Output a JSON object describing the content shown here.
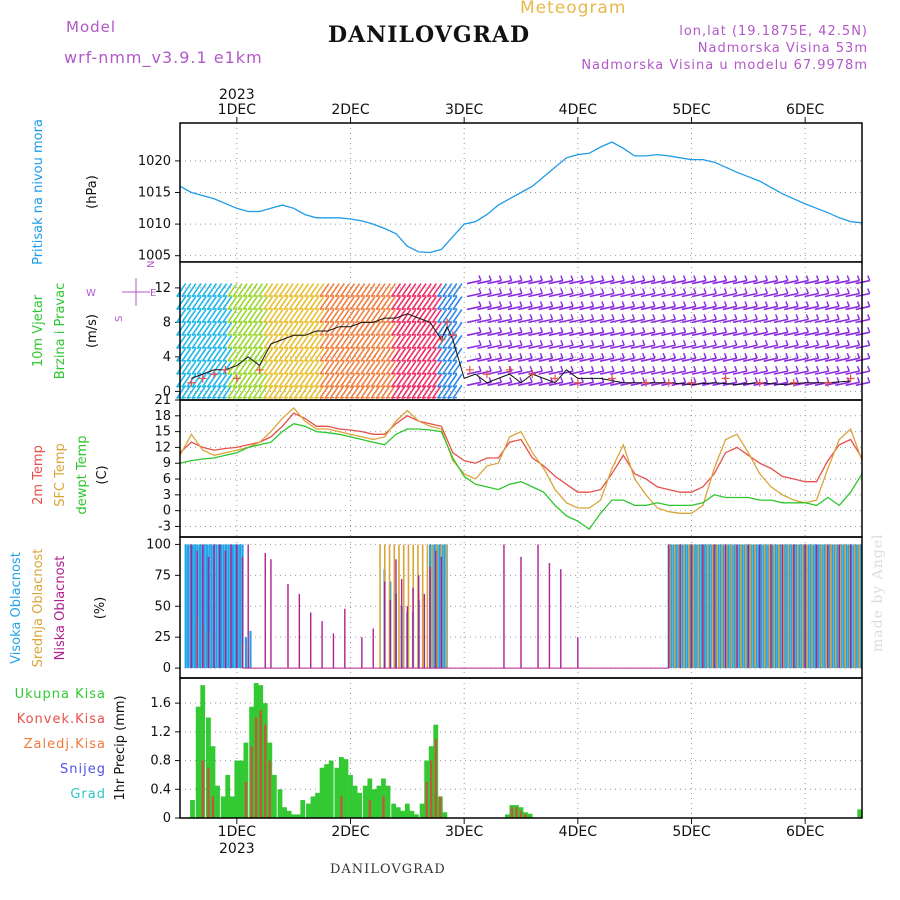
{
  "header": {
    "model_label": "Model",
    "model_name": "wrf-nmm_v3.9.1 e1km",
    "station": "DANILOVGRAD",
    "product": "Meteogram",
    "lonlat": "lon,lat (19.1875E, 42.5N)",
    "elevation": "Nadmorska Visina 53m",
    "model_elevation": "Nadmorska Visina u modelu 67.9978m",
    "footer_station": "DANILOVGRAD",
    "credit": "made by Angel"
  },
  "colors": {
    "pressure": "#1E9BE8",
    "t2m": "#E8504B",
    "sfc": "#D9A53A",
    "dew": "#2EC62E",
    "high_cloud": "#22A3E8",
    "mid_cloud": "#D9A53A",
    "low_cloud": "#B0208E",
    "precip_total": "#33C933",
    "precip_conv": "#C05A3A",
    "wind_speed": "#111111",
    "gust": "#E8504B",
    "grid": "#999999",
    "purple_text": "#B258C8"
  },
  "chart_data": [
    {
      "type": "line",
      "name": "pressure",
      "ylabel_lines": [
        "Pritisak na nivou mora",
        "(hPa)"
      ],
      "ylim": [
        1004,
        1026
      ],
      "yticks": [
        1005,
        1010,
        1015,
        1020
      ],
      "x_range": [
        0.5,
        6.5
      ],
      "x": [
        0.5,
        0.6,
        0.8,
        1.0,
        1.1,
        1.2,
        1.3,
        1.4,
        1.5,
        1.6,
        1.7,
        1.8,
        1.9,
        2.0,
        2.1,
        2.2,
        2.3,
        2.4,
        2.5,
        2.6,
        2.7,
        2.8,
        2.9,
        3.0,
        3.1,
        3.2,
        3.3,
        3.4,
        3.5,
        3.6,
        3.7,
        3.8,
        3.9,
        4.0,
        4.1,
        4.2,
        4.3,
        4.4,
        4.5,
        4.6,
        4.7,
        4.8,
        4.9,
        5.0,
        5.1,
        5.2,
        5.3,
        5.4,
        5.5,
        5.6,
        5.7,
        5.8,
        5.9,
        6.0,
        6.1,
        6.2,
        6.3,
        6.4,
        6.5
      ],
      "y": [
        1016,
        1015,
        1014,
        1012.5,
        1012,
        1012,
        1012.5,
        1013,
        1012.5,
        1011.5,
        1011,
        1011,
        1011,
        1010.8,
        1010.5,
        1010,
        1009.3,
        1008.5,
        1006.5,
        1005.6,
        1005.5,
        1006,
        1008,
        1010,
        1010.4,
        1011.5,
        1013,
        1014,
        1015,
        1016,
        1017.5,
        1019,
        1020.5,
        1021,
        1021.2,
        1022.2,
        1023,
        1022,
        1020.8,
        1020.8,
        1021,
        1020.8,
        1020.5,
        1020.2,
        1020.2,
        1019.8,
        1019,
        1018.2,
        1017.5,
        1016.8,
        1015.8,
        1014.8,
        1014,
        1013.2,
        1012.5,
        1011.8,
        1011,
        1010.4,
        1010.2
      ]
    },
    {
      "type": "wind",
      "name": "wind",
      "ylabel_lines": [
        "10m Vjetar",
        "Brzina i Pravac",
        "(m/s)"
      ],
      "compass": [
        "N",
        "W",
        "E",
        "S"
      ],
      "ylim": [
        -1,
        15
      ],
      "yticks": [
        0,
        4,
        8,
        12
      ],
      "x_range": [
        0.5,
        6.5
      ],
      "speed_x": [
        0.6,
        0.7,
        0.8,
        0.9,
        1.0,
        1.1,
        1.2,
        1.3,
        1.4,
        1.5,
        1.6,
        1.7,
        1.8,
        1.9,
        2.0,
        2.1,
        2.2,
        2.3,
        2.4,
        2.5,
        2.6,
        2.7,
        2.8,
        2.85,
        2.9,
        3.0,
        3.1,
        3.2,
        3.3,
        3.4,
        3.5,
        3.6,
        3.7,
        3.8,
        3.9,
        4.0,
        4.2,
        4.4,
        4.6,
        4.8,
        5.0,
        5.2,
        5.4,
        5.6,
        5.8,
        6.0,
        6.2,
        6.4
      ],
      "speed_y": [
        1.5,
        2.0,
        2.5,
        2.5,
        3.0,
        4.0,
        3.0,
        5.5,
        6.0,
        6.5,
        6.5,
        7.0,
        7.0,
        7.5,
        7.5,
        8.0,
        8.0,
        8.5,
        8.5,
        9.0,
        8.5,
        8.0,
        6.0,
        7.5,
        6.0,
        1.5,
        2.0,
        1.0,
        1.5,
        2.0,
        1.0,
        2.0,
        1.5,
        1.0,
        2.5,
        1.5,
        1.5,
        1.0,
        1.0,
        1.0,
        0.8,
        1.0,
        0.8,
        1.0,
        0.8,
        1.0,
        1.0,
        1.2
      ],
      "gust_x": [
        0.6,
        0.7,
        0.8,
        0.9,
        1.0,
        1.2,
        2.8,
        2.85,
        2.9,
        3.05,
        3.2,
        3.4,
        3.6,
        3.8,
        4.0,
        4.3,
        4.6,
        4.8,
        5.0,
        5.3,
        5.6,
        5.9,
        6.2,
        6.4
      ],
      "gust_y": [
        1.0,
        1.5,
        2.0,
        2.5,
        1.5,
        2.5,
        6.0,
        8.0,
        6.5,
        2.5,
        2.0,
        2.5,
        2.0,
        1.5,
        1.0,
        1.5,
        1.0,
        1.0,
        1.0,
        1.5,
        1.0,
        1.0,
        1.0,
        1.5
      ]
    },
    {
      "type": "line",
      "name": "temperature",
      "ylabel_lines": [
        "2m Temp",
        "SFC Temp",
        "dewpt Temp",
        "(C)"
      ],
      "ylim": [
        -5,
        21
      ],
      "yticks": [
        -3,
        0,
        3,
        6,
        9,
        12,
        15,
        18,
        21
      ],
      "x_range": [
        0.5,
        6.5
      ],
      "series": [
        {
          "name": "2m Temp",
          "x": [
            0.5,
            0.6,
            0.7,
            0.8,
            0.9,
            1.0,
            1.1,
            1.2,
            1.3,
            1.4,
            1.5,
            1.6,
            1.7,
            1.8,
            1.9,
            2.0,
            2.1,
            2.2,
            2.3,
            2.4,
            2.5,
            2.6,
            2.7,
            2.8,
            2.9,
            3.0,
            3.1,
            3.2,
            3.3,
            3.4,
            3.5,
            3.6,
            3.7,
            3.8,
            3.9,
            4.0,
            4.1,
            4.2,
            4.3,
            4.4,
            4.5,
            4.6,
            4.7,
            4.8,
            4.9,
            5.0,
            5.1,
            5.2,
            5.3,
            5.4,
            5.5,
            5.6,
            5.7,
            5.8,
            5.9,
            6.0,
            6.1,
            6.2,
            6.3,
            6.4,
            6.5
          ],
          "y": [
            11.0,
            13.0,
            12.0,
            11.5,
            11.8,
            12.0,
            12.5,
            13.0,
            14.0,
            16.0,
            18.5,
            17.5,
            16.0,
            16.0,
            15.5,
            15.3,
            15.0,
            14.5,
            14.5,
            16.5,
            18.0,
            17.0,
            16.5,
            16.0,
            11.0,
            9.5,
            9.0,
            10.0,
            10.0,
            13.0,
            13.5,
            10.0,
            8.5,
            6.5,
            5.0,
            3.5,
            3.5,
            4.0,
            7.0,
            10.5,
            7.0,
            6.0,
            4.5,
            4.0,
            3.5,
            3.5,
            4.5,
            7.0,
            11.0,
            12.0,
            10.5,
            9.0,
            8.0,
            6.5,
            6.0,
            5.5,
            5.5,
            9.5,
            12.5,
            13.5,
            10.0
          ]
        },
        {
          "name": "SFC Temp",
          "x": [
            0.5,
            0.6,
            0.7,
            0.8,
            0.9,
            1.0,
            1.1,
            1.2,
            1.3,
            1.4,
            1.5,
            1.6,
            1.7,
            1.8,
            1.9,
            2.0,
            2.1,
            2.2,
            2.3,
            2.4,
            2.5,
            2.6,
            2.7,
            2.8,
            2.9,
            3.0,
            3.1,
            3.2,
            3.3,
            3.4,
            3.5,
            3.6,
            3.7,
            3.8,
            3.9,
            4.0,
            4.1,
            4.2,
            4.3,
            4.4,
            4.5,
            4.6,
            4.7,
            4.8,
            4.9,
            5.0,
            5.1,
            5.2,
            5.3,
            5.4,
            5.5,
            5.6,
            5.7,
            5.8,
            5.9,
            6.0,
            6.1,
            6.2,
            6.3,
            6.4,
            6.5
          ],
          "y": [
            10.5,
            14.5,
            11.5,
            10.5,
            11.0,
            11.5,
            12.0,
            13.0,
            15.0,
            17.5,
            19.5,
            17.0,
            15.5,
            15.5,
            15.0,
            14.5,
            14.0,
            13.5,
            14.0,
            17.0,
            19.0,
            17.0,
            16.0,
            15.5,
            9.5,
            7.0,
            6.0,
            8.5,
            9.0,
            14.0,
            15.0,
            11.0,
            8.0,
            4.0,
            1.5,
            0.5,
            0.5,
            2.0,
            8.0,
            12.5,
            6.0,
            3.0,
            0.5,
            -0.2,
            -0.5,
            -0.5,
            1.0,
            8.0,
            13.5,
            14.5,
            11.0,
            7.0,
            4.5,
            3.0,
            2.0,
            1.5,
            2.0,
            8.0,
            13.5,
            15.5,
            9.5
          ]
        },
        {
          "name": "dewpt Temp",
          "x": [
            0.5,
            0.6,
            0.7,
            0.8,
            0.9,
            1.0,
            1.1,
            1.2,
            1.3,
            1.4,
            1.5,
            1.6,
            1.7,
            1.8,
            1.9,
            2.0,
            2.1,
            2.2,
            2.3,
            2.4,
            2.5,
            2.6,
            2.7,
            2.8,
            2.9,
            3.0,
            3.1,
            3.2,
            3.3,
            3.4,
            3.5,
            3.6,
            3.7,
            3.8,
            3.9,
            4.0,
            4.1,
            4.2,
            4.3,
            4.4,
            4.5,
            4.6,
            4.7,
            4.8,
            4.9,
            5.0,
            5.1,
            5.2,
            5.3,
            5.4,
            5.5,
            5.6,
            5.7,
            5.8,
            5.9,
            6.0,
            6.1,
            6.2,
            6.3,
            6.4,
            6.5
          ],
          "y": [
            9.0,
            9.5,
            9.8,
            10.0,
            10.5,
            11.0,
            12.0,
            12.5,
            13.0,
            15.0,
            16.5,
            16.0,
            15.0,
            14.8,
            14.5,
            14.0,
            13.5,
            13.0,
            12.5,
            14.5,
            15.5,
            15.5,
            15.3,
            15.0,
            10.0,
            6.5,
            5.0,
            4.5,
            4.0,
            5.0,
            5.5,
            4.5,
            3.5,
            1.0,
            -1.0,
            -2.0,
            -3.5,
            -0.5,
            2.0,
            2.0,
            1.0,
            1.0,
            1.5,
            1.0,
            1.0,
            1.0,
            1.5,
            3.0,
            2.5,
            2.5,
            2.5,
            2.0,
            2.0,
            1.5,
            1.5,
            1.5,
            1.0,
            2.5,
            1.0,
            3.5,
            7.0
          ]
        }
      ]
    },
    {
      "type": "bar",
      "name": "cloud",
      "ylabel_lines": [
        "Visoka Oblacnost",
        "Srednja Oblacnost",
        "Niska Oblacnost",
        "(%)"
      ],
      "ylim": [
        -8,
        106
      ],
      "yticks": [
        0,
        25,
        50,
        75,
        100
      ],
      "x_range": [
        0.5,
        6.5
      ],
      "high_runs": [
        [
          0.55,
          1.05,
          100
        ],
        [
          2.7,
          2.85,
          100
        ],
        [
          4.8,
          6.5,
          100
        ]
      ],
      "high_x": [
        1.08,
        1.12,
        2.3,
        2.35,
        2.4,
        2.45,
        2.5,
        2.55,
        2.6
      ],
      "high_y": [
        25,
        30,
        80,
        70,
        60,
        50,
        45,
        45,
        55
      ],
      "mid_runs": [
        [
          2.25,
          2.85,
          100
        ],
        [
          4.8,
          6.5,
          100
        ]
      ],
      "mid_x": [
        0.65,
        0.7,
        0.75,
        1.05,
        1.1
      ],
      "mid_y": [
        40,
        35,
        30,
        20,
        15
      ],
      "low_x": [
        0.6,
        0.65,
        0.7,
        0.75,
        0.8,
        0.85,
        0.9,
        0.95,
        1.0,
        1.05,
        1.1,
        1.25,
        1.3,
        1.45,
        1.55,
        1.65,
        1.75,
        1.85,
        1.95,
        2.1,
        2.2,
        2.3,
        2.35,
        2.4,
        2.45,
        2.5,
        2.55,
        2.6,
        2.65,
        2.7,
        2.75,
        2.8,
        3.35,
        3.5,
        3.65,
        3.75,
        3.85,
        4.0,
        4.8,
        4.9,
        5.0,
        5.1,
        5.2,
        5.3,
        5.4,
        5.5,
        5.6,
        5.7,
        5.8,
        5.9,
        6.0,
        6.1,
        6.2,
        6.3,
        6.4
      ],
      "low_y": [
        100,
        95,
        100,
        90,
        100,
        100,
        95,
        100,
        100,
        90,
        100,
        93,
        88,
        68,
        60,
        45,
        38,
        28,
        48,
        25,
        32,
        70,
        55,
        88,
        72,
        50,
        65,
        75,
        60,
        82,
        95,
        90,
        100,
        90,
        100,
        85,
        80,
        25,
        100,
        100,
        100,
        100,
        100,
        100,
        100,
        100,
        100,
        100,
        100,
        100,
        100,
        100,
        100,
        100,
        100
      ]
    },
    {
      "type": "bar",
      "name": "precip",
      "ylabel_lines": [
        "1hr Precip (mm)"
      ],
      "legend": [
        "Ukupna Kisa",
        "Konvek.Kisa",
        "Zaledj.Kisa",
        "Snijeg",
        "Grad"
      ],
      "ylim": [
        0,
        1.95
      ],
      "yticks": [
        0,
        0.4,
        0.8,
        1.2,
        1.6
      ],
      "x_range": [
        0.5,
        6.5
      ],
      "total_x": [
        0.61,
        0.66,
        0.7,
        0.75,
        0.79,
        0.83,
        0.88,
        0.92,
        0.96,
        1.0,
        1.04,
        1.08,
        1.13,
        1.17,
        1.21,
        1.25,
        1.29,
        1.33,
        1.38,
        1.42,
        1.46,
        1.5,
        1.54,
        1.58,
        1.63,
        1.67,
        1.71,
        1.75,
        1.79,
        1.83,
        1.88,
        1.92,
        1.96,
        2.0,
        2.04,
        2.08,
        2.13,
        2.17,
        2.21,
        2.25,
        2.29,
        2.33,
        2.38,
        2.42,
        2.46,
        2.5,
        2.54,
        2.58,
        2.63,
        2.67,
        2.71,
        2.75,
        2.79,
        2.83,
        3.38,
        3.42,
        3.46,
        3.5,
        3.54,
        3.58,
        6.48
      ],
      "total_y": [
        0.25,
        1.55,
        1.85,
        1.4,
        1.0,
        0.45,
        0.3,
        0.6,
        0.3,
        0.8,
        0.8,
        1.05,
        1.55,
        1.88,
        1.85,
        1.6,
        1.05,
        0.6,
        0.4,
        0.15,
        0.1,
        0.05,
        0.05,
        0.25,
        0.2,
        0.3,
        0.35,
        0.7,
        0.75,
        0.8,
        0.7,
        0.85,
        0.82,
        0.6,
        0.45,
        0.35,
        0.45,
        0.55,
        0.4,
        0.45,
        0.55,
        0.45,
        0.2,
        0.15,
        0.1,
        0.2,
        0.1,
        0.05,
        0.2,
        0.8,
        1.0,
        1.3,
        0.3,
        0.08,
        0.05,
        0.18,
        0.18,
        0.15,
        0.08,
        0.06,
        0.12
      ],
      "conv_x": [
        0.7,
        0.75,
        0.79,
        1.08,
        1.13,
        1.17,
        1.21,
        1.25,
        1.29,
        1.92,
        2.17,
        2.29,
        2.67,
        2.71,
        2.75,
        2.79,
        3.42,
        3.46,
        3.5,
        3.54
      ],
      "conv_y": [
        0.8,
        0.7,
        0.3,
        0.5,
        1.0,
        1.4,
        1.5,
        1.3,
        0.8,
        0.3,
        0.25,
        0.3,
        0.5,
        0.8,
        1.1,
        0.3,
        0.15,
        0.15,
        0.1,
        0.05
      ]
    }
  ],
  "x_axis": {
    "year": "2023",
    "top_labels": [
      "1DEC",
      "2DEC",
      "3DEC",
      "4DEC",
      "5DEC",
      "6DEC"
    ],
    "bottom_labels": [
      "1DEC",
      "2DEC",
      "3DEC",
      "4DEC",
      "5DEC",
      "6DEC"
    ],
    "ticks": [
      1,
      2,
      3,
      4,
      5,
      6
    ]
  }
}
